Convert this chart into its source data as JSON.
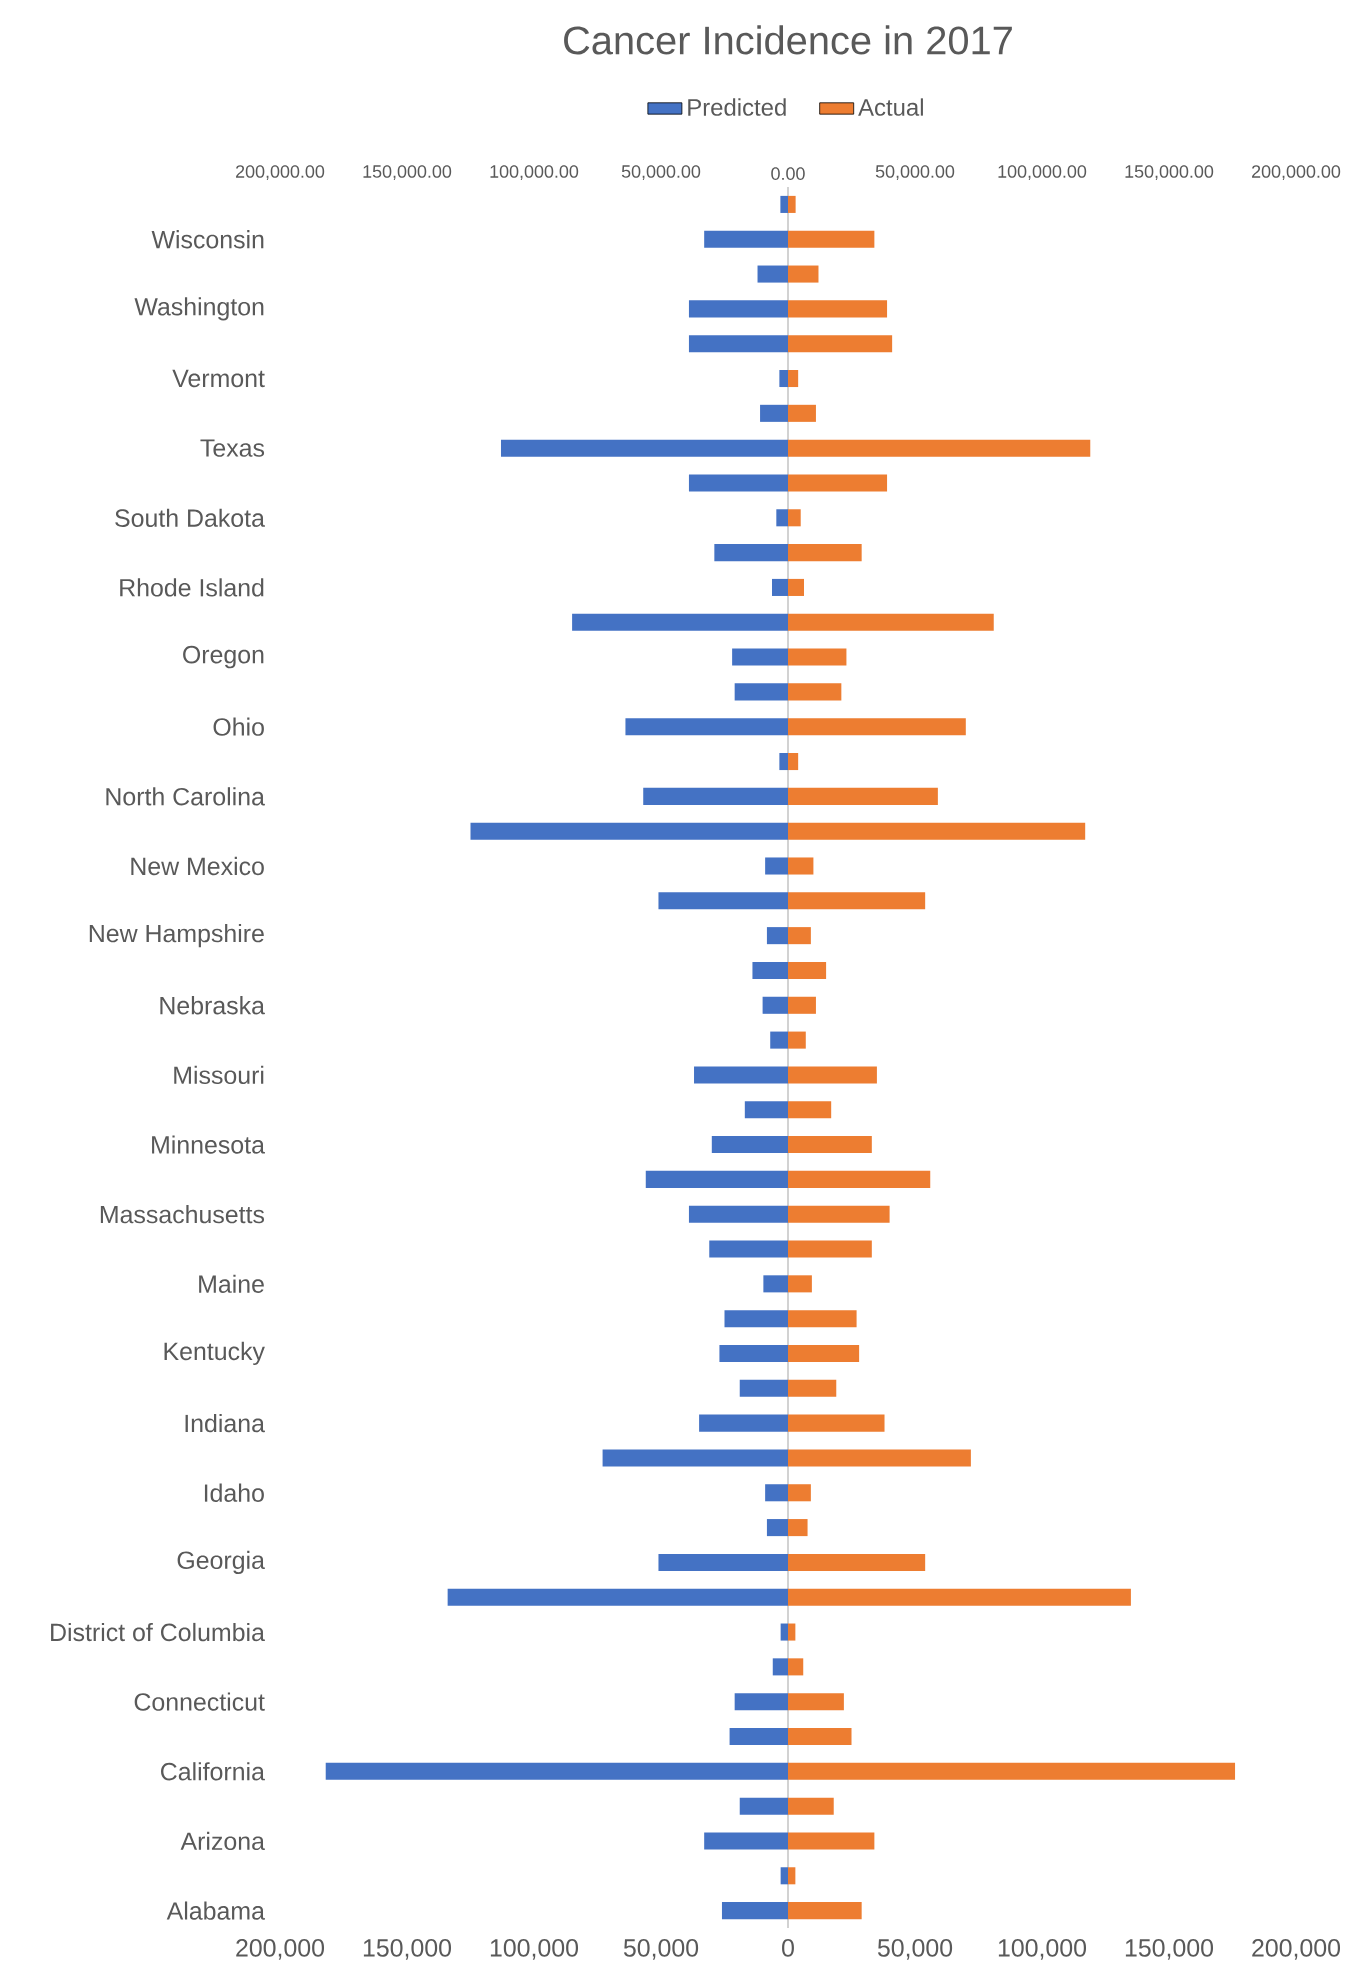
{
  "chart_data": {
    "type": "bar",
    "orientation": "horizontal",
    "title": "Cancer Incidence in 2017",
    "categories": [
      null,
      "Wisconsin",
      null,
      "Washington",
      null,
      "Vermont",
      null,
      "Texas",
      null,
      "South Dakota",
      null,
      "Rhode Island",
      null,
      "Oregon",
      null,
      "Ohio",
      null,
      "North Carolina",
      null,
      "New Mexico",
      null,
      "New Hampshire",
      null,
      "Nebraska",
      null,
      "Missouri",
      null,
      "Minnesota",
      null,
      "Massachusetts",
      null,
      "Maine",
      null,
      "Kentucky",
      null,
      "Indiana",
      null,
      "Idaho",
      null,
      "Georgia",
      null,
      "District of Columbia",
      null,
      "Connecticut",
      null,
      "California",
      null,
      "Arizona",
      null,
      "Alabama"
    ],
    "series": [
      {
        "name": "Predicted",
        "color": "#4472c4",
        "values": [
          -3000,
          -33000,
          -12000,
          -39000,
          -39000,
          -3400,
          -11000,
          -113000,
          -39000,
          -4600,
          -29000,
          -6300,
          -85000,
          -22000,
          -21000,
          -64000,
          -3400,
          -57000,
          -125000,
          -9000,
          -51000,
          -8300,
          -14000,
          -10000,
          -7000,
          -37000,
          -17000,
          -30000,
          -56000,
          -39000,
          -31000,
          -9700,
          -25000,
          -27000,
          -19000,
          -35000,
          -73000,
          -9000,
          -8300,
          -51000,
          -134000,
          -2900,
          -6000,
          -21000,
          -23000,
          -182000,
          -19000,
          -33000,
          -2900,
          -26000
        ]
      },
      {
        "name": "Actual",
        "color": "#ed7d31",
        "values": [
          3000,
          34000,
          12000,
          39000,
          41000,
          4000,
          11000,
          119000,
          39000,
          5000,
          29000,
          6300,
          81000,
          23000,
          21000,
          70000,
          4000,
          59000,
          117000,
          10000,
          54000,
          9000,
          15000,
          11000,
          7000,
          35000,
          17000,
          33000,
          56000,
          40000,
          33000,
          9400,
          27000,
          28000,
          19000,
          38000,
          72000,
          9000,
          7700,
          54000,
          135000,
          2900,
          6000,
          22000,
          25000,
          176000,
          18000,
          34000,
          2900,
          29000
        ]
      }
    ],
    "xlim": [
      -200000,
      200000
    ],
    "xticks": [
      {
        "value": -200000,
        "label": "200,000"
      },
      {
        "value": -150000,
        "label": "150,000"
      },
      {
        "value": -100000,
        "label": "100,000"
      },
      {
        "value": -50000,
        "label": "50,000"
      },
      0,
      {
        "value": 50000,
        "label": "50,000"
      },
      {
        "value": 100000,
        "label": "100,000"
      },
      {
        "value": 150000,
        "label": "150,000"
      },
      {
        "value": 200000,
        "label": "200,000"
      }
    ],
    "x2lim": [
      -200000,
      200000
    ],
    "x2ticks": [
      {
        "value": -200000,
        "label": "200,000.00"
      },
      {
        "value": -150000,
        "label": "150,000.00"
      },
      {
        "value": -100000,
        "label": "100,000.00"
      },
      {
        "value": -50000,
        "label": "50,000.00"
      },
      {
        "value": 0,
        "label": "0.00"
      },
      {
        "value": 50000,
        "label": "50,000.00"
      },
      {
        "value": 100000,
        "label": "100,000.00"
      },
      {
        "value": 150000,
        "label": "150,000.00"
      },
      {
        "value": 200000,
        "label": "200,000.00"
      }
    ],
    "stacked": true,
    "legend": "top"
  }
}
